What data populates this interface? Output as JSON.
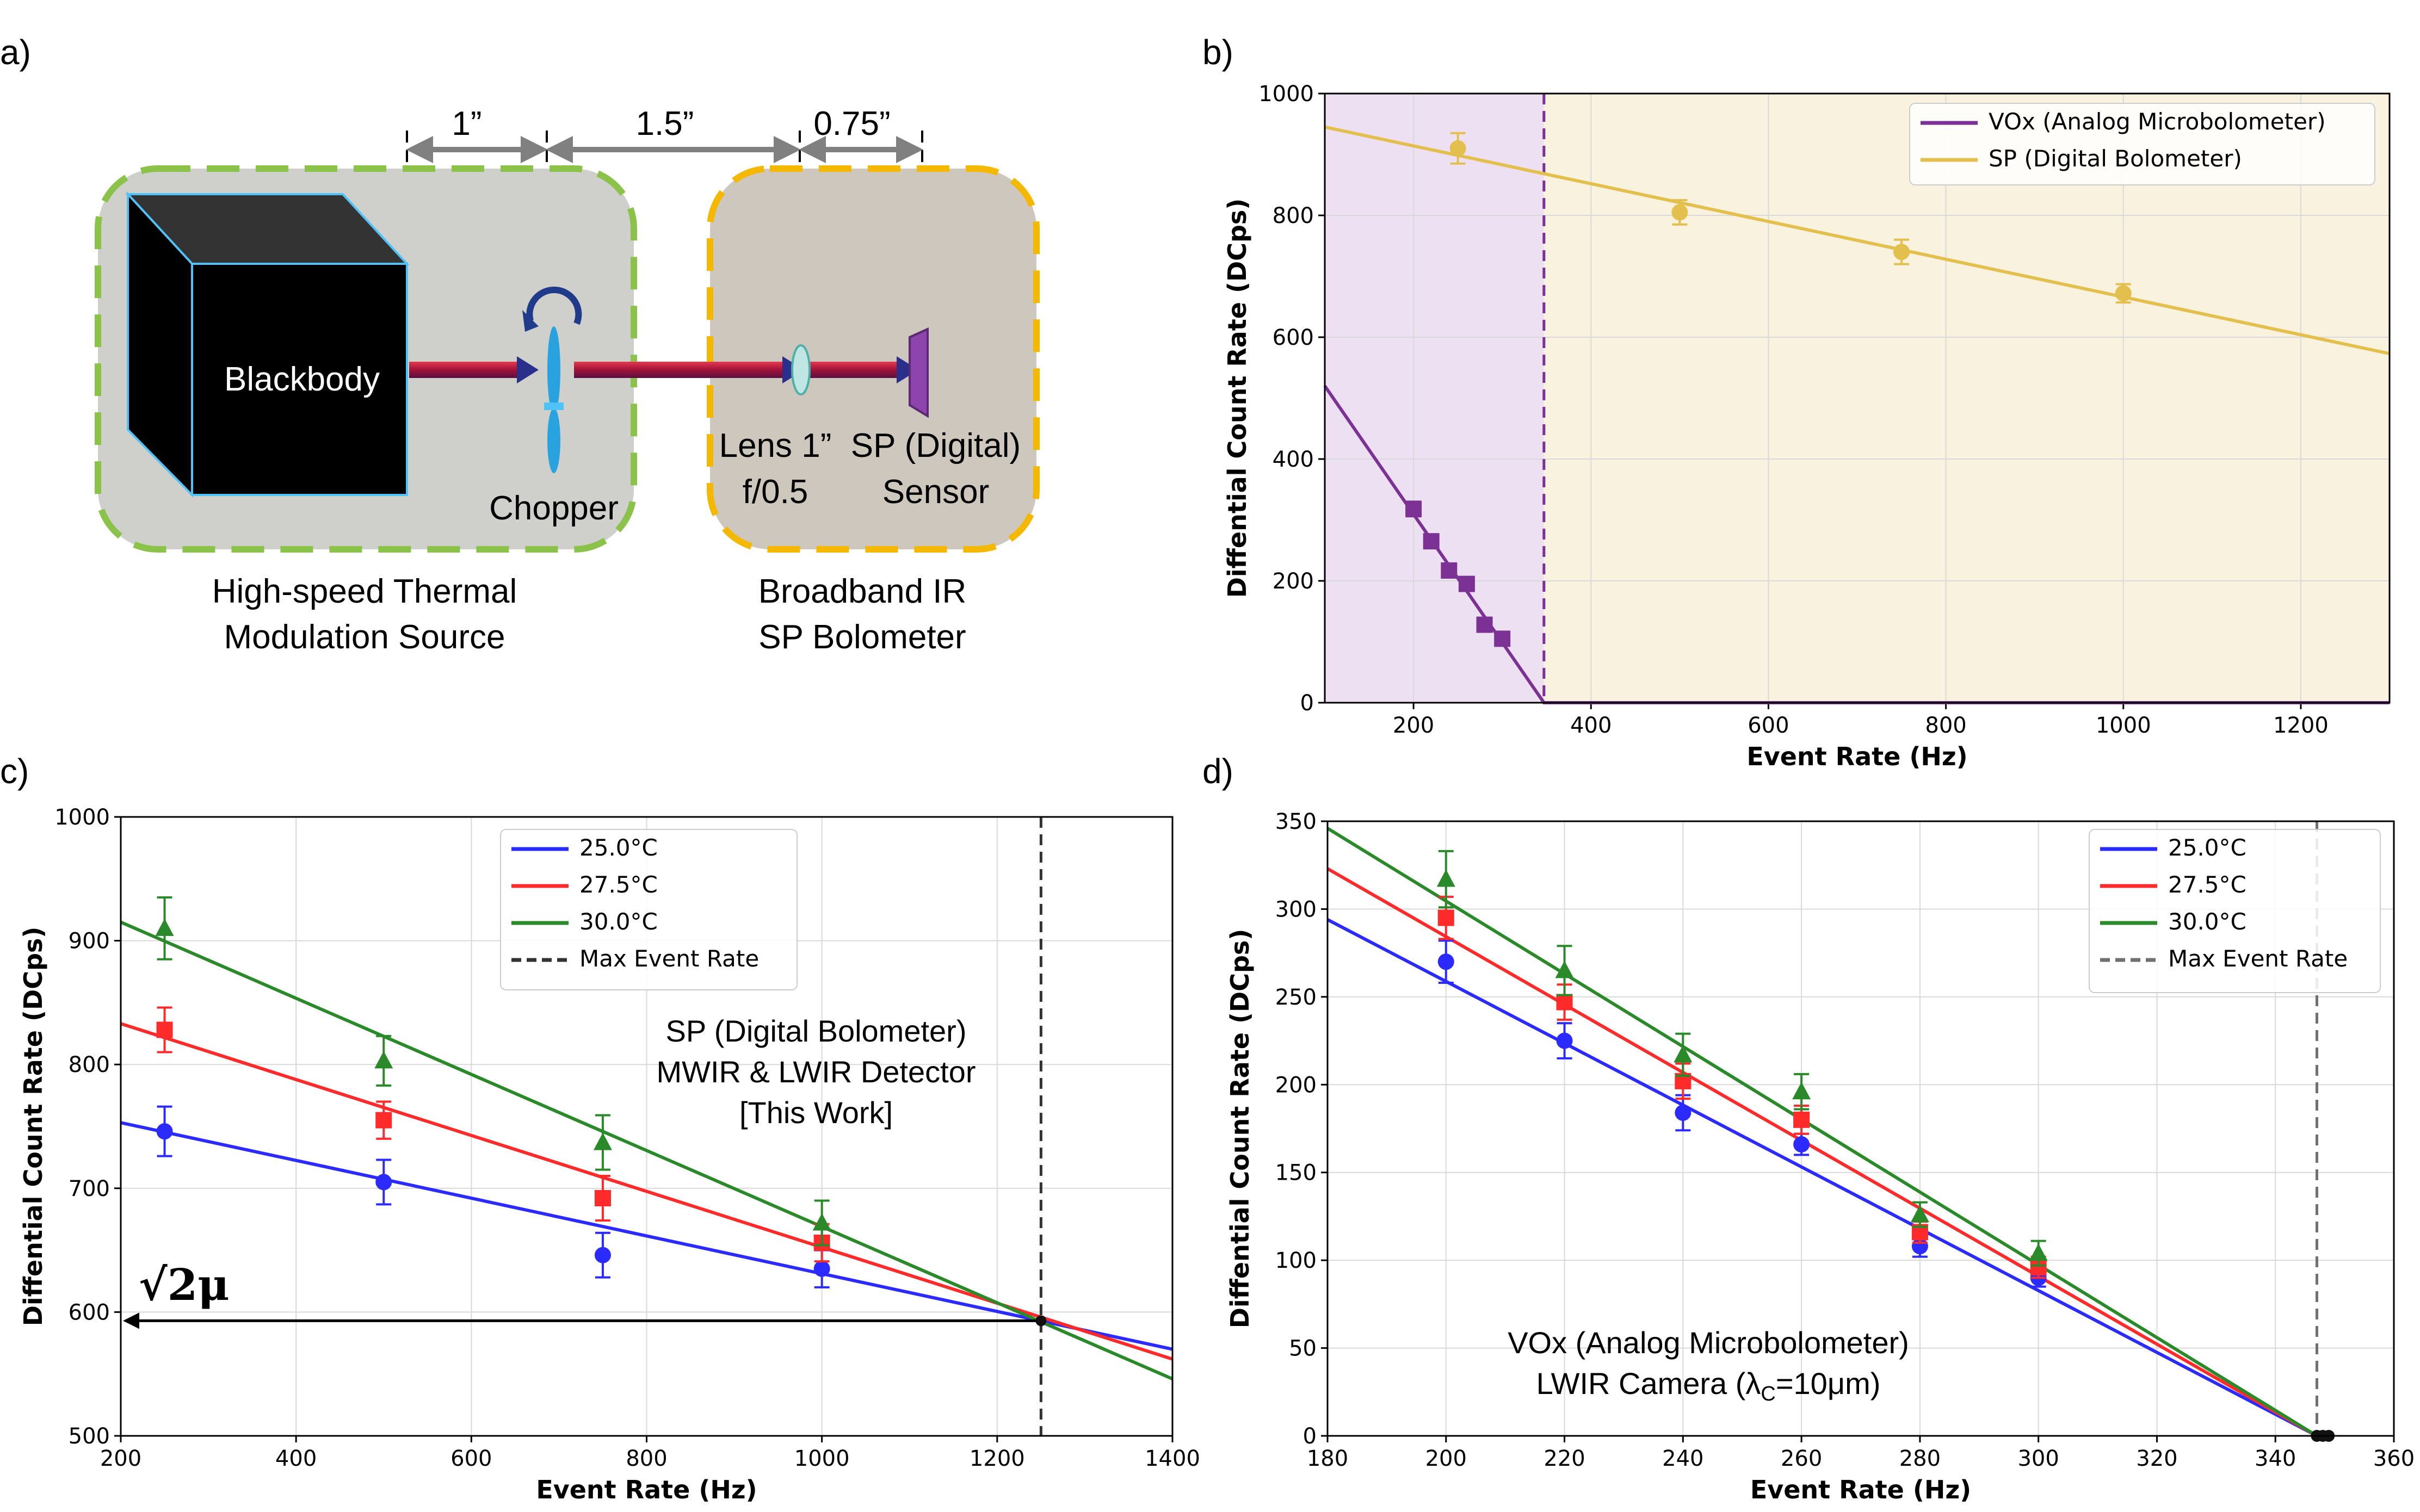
{
  "panels": {
    "a": {
      "label": "a)",
      "dims": [
        "1”",
        "1.5”",
        "0.75”"
      ],
      "blackbody": "Blackbody",
      "chopper": "Chopper",
      "lens_line1": "Lens 1”",
      "lens_line2": "f/0.5",
      "sensor_line1": "SP (Digital)",
      "sensor_line2": "Sensor",
      "source_line1": "High-speed Thermal",
      "source_line2": "Modulation Source",
      "bolo_line1": "Broadband IR",
      "bolo_line2": "SP Bolometer"
    },
    "b": {
      "label": "b)"
    },
    "c": {
      "label": "c)",
      "annot_line1": "SP (Digital Bolometer)",
      "annot_line2": "MWIR & LWIR Detector",
      "annot_line3": "[This Work]",
      "sqrt_label": "√2μ"
    },
    "d": {
      "label": "d)",
      "annot_line1": "VOx (Analog Microbolometer)",
      "annot_line2": "LWIR Camera (λ",
      "annot_sub": "C",
      "annot_line2_end": "=10μm)"
    }
  },
  "colors": {
    "vox": "#7b3294",
    "sp": "#e3c04d",
    "t25": "#2b2bff",
    "t275": "#ff2a2a",
    "t30": "#2a8a2a",
    "vox_region": "#ede0f2",
    "sp_region": "#f8f2df",
    "green_box": "#8bc34a",
    "yellow_box": "#f5b800"
  },
  "chart_data": [
    {
      "id": "b",
      "type": "line",
      "xlabel": "Event Rate (Hz)",
      "ylabel": "Diffential Count Rate (DCps)",
      "xlim": [
        100,
        1300
      ],
      "ylim": [
        0,
        1000
      ],
      "xticks": [
        200,
        400,
        600,
        800,
        1000,
        1200
      ],
      "yticks": [
        0,
        200,
        400,
        600,
        800,
        1000
      ],
      "shaded_regions": [
        {
          "name": "VOx region",
          "x": [
            100,
            347
          ]
        },
        {
          "name": "SP region",
          "x": [
            347,
            1300
          ]
        }
      ],
      "vline": 347,
      "legend_position": "top-right",
      "series": [
        {
          "name": "VOx (Analog Microbolometer)",
          "fit": [
            [
              100,
              520
            ],
            [
              347,
              0
            ],
            [
              1300,
              0
            ]
          ],
          "points": [
            [
              200,
              318,
              12
            ],
            [
              220,
              265,
              10
            ],
            [
              240,
              217,
              10
            ],
            [
              260,
              195,
              10
            ],
            [
              280,
              128,
              10
            ],
            [
              300,
              105,
              10
            ]
          ],
          "marker": "square"
        },
        {
          "name": "SP (Digital Bolometer)",
          "fit": [
            [
              100,
              945
            ],
            [
              1300,
              573
            ]
          ],
          "points": [
            [
              250,
              910,
              25
            ],
            [
              500,
              805,
              20
            ],
            [
              750,
              740,
              20
            ],
            [
              1000,
              672,
              15
            ]
          ],
          "marker": "circle"
        }
      ]
    },
    {
      "id": "c",
      "type": "line",
      "xlabel": "Event Rate (Hz)",
      "ylabel": "Diffential Count Rate (DCps)",
      "xlim": [
        200,
        1400
      ],
      "ylim": [
        500,
        1000
      ],
      "xticks": [
        200,
        400,
        600,
        800,
        1000,
        1200,
        1400
      ],
      "yticks": [
        500,
        600,
        700,
        800,
        900,
        1000
      ],
      "vline": {
        "x": 1250,
        "name": "Max Event Rate"
      },
      "arrow": {
        "from": [
          1250,
          593
        ],
        "to": [
          200,
          593
        ]
      },
      "legend_position": "top-center",
      "series": [
        {
          "name": "25.0°C",
          "fit": [
            [
              200,
              753
            ],
            [
              1400,
              570
            ]
          ],
          "points": [
            [
              250,
              746,
              20
            ],
            [
              500,
              705,
              18
            ],
            [
              750,
              646,
              18
            ],
            [
              1000,
              635,
              15
            ]
          ],
          "marker": "circle"
        },
        {
          "name": "27.5°C",
          "fit": [
            [
              200,
              833
            ],
            [
              1400,
              562
            ]
          ],
          "points": [
            [
              250,
              828,
              18
            ],
            [
              500,
              755,
              15
            ],
            [
              750,
              692,
              18
            ],
            [
              1000,
              656,
              15
            ]
          ],
          "marker": "square"
        },
        {
          "name": "30.0°C",
          "fit": [
            [
              200,
              915
            ],
            [
              1400,
              546
            ]
          ],
          "points": [
            [
              250,
              910,
              25
            ],
            [
              500,
              803,
              20
            ],
            [
              750,
              737,
              22
            ],
            [
              1000,
              672,
              18
            ]
          ],
          "marker": "triangle"
        }
      ]
    },
    {
      "id": "d",
      "type": "line",
      "xlabel": "Event Rate (Hz)",
      "ylabel": "Diffential Count Rate (DCps)",
      "xlim": [
        180,
        360
      ],
      "ylim": [
        0,
        350
      ],
      "xticks": [
        180,
        200,
        220,
        240,
        260,
        280,
        300,
        320,
        340,
        360
      ],
      "yticks": [
        0,
        50,
        100,
        150,
        200,
        250,
        300,
        350
      ],
      "vline": {
        "x": 347,
        "name": "Max Event Rate"
      },
      "legend_position": "top-right",
      "series": [
        {
          "name": "25.0°C",
          "fit": [
            [
              180,
              294
            ],
            [
              347,
              0
            ]
          ],
          "points": [
            [
              200,
              270,
              12
            ],
            [
              220,
              225,
              10
            ],
            [
              240,
              184,
              10
            ],
            [
              260,
              166,
              6
            ],
            [
              280,
              108,
              6
            ],
            [
              300,
              90,
              5
            ]
          ],
          "marker": "circle"
        },
        {
          "name": "27.5°C",
          "fit": [
            [
              180,
              323
            ],
            [
              347,
              0
            ]
          ],
          "points": [
            [
              200,
              295,
              12
            ],
            [
              220,
              247,
              10
            ],
            [
              240,
              202,
              10
            ],
            [
              260,
              180,
              8
            ],
            [
              280,
              116,
              6
            ],
            [
              300,
              96,
              6
            ]
          ],
          "marker": "square"
        },
        {
          "name": "30.0°C",
          "fit": [
            [
              180,
              346
            ],
            [
              347,
              0
            ]
          ],
          "points": [
            [
              200,
              317,
              16
            ],
            [
              220,
              265,
              14
            ],
            [
              240,
              217,
              12
            ],
            [
              260,
              196,
              10
            ],
            [
              280,
              126,
              7
            ],
            [
              300,
              104,
              7
            ]
          ],
          "marker": "triangle"
        }
      ],
      "end_points": [
        347,
        348,
        349
      ]
    }
  ]
}
